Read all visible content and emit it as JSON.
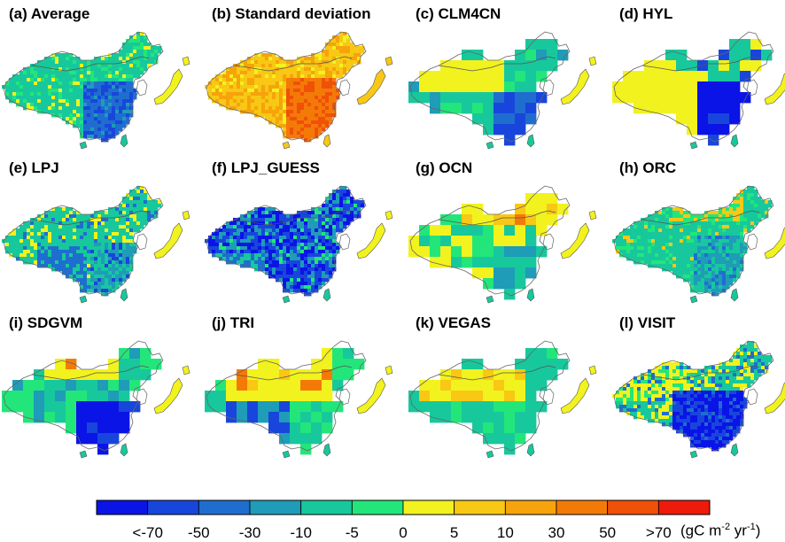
{
  "panels": [
    {
      "title": "(a) Average",
      "pattern": "average"
    },
    {
      "title": "(b) Standard deviation",
      "pattern": "std"
    },
    {
      "title": "(c) CLM4CN",
      "pattern": "clm"
    },
    {
      "title": "(d) HYL",
      "pattern": "hyl"
    },
    {
      "title": "(e) LPJ",
      "pattern": "lpj"
    },
    {
      "title": "(f) LPJ_GUESS",
      "pattern": "lpjguess"
    },
    {
      "title": "(g) OCN",
      "pattern": "ocn"
    },
    {
      "title": "(h) ORC",
      "pattern": "orc"
    },
    {
      "title": "(i) SDGVM",
      "pattern": "sdgvm"
    },
    {
      "title": "(j) TRI",
      "pattern": "tri"
    },
    {
      "title": "(k) VEGAS",
      "pattern": "vegas"
    },
    {
      "title": "(l) VISIT",
      "pattern": "visit"
    }
  ],
  "colorbar": {
    "colors": [
      "#0a14e6",
      "#1846dc",
      "#1f6ecf",
      "#1e9cb8",
      "#17c89c",
      "#22e67a",
      "#f2f21e",
      "#f8c814",
      "#f6a30c",
      "#f47a08",
      "#f05008",
      "#ee1a0a"
    ],
    "labels": [
      "<-70",
      "-50",
      "-30",
      "-10",
      "-5",
      "0",
      "5",
      "10",
      "30",
      "50",
      ">70"
    ],
    "units_base": "(gC m",
    "units_exp1": "-2",
    "units_mid": " yr",
    "units_exp2": "-1",
    "units_end": ")"
  }
}
